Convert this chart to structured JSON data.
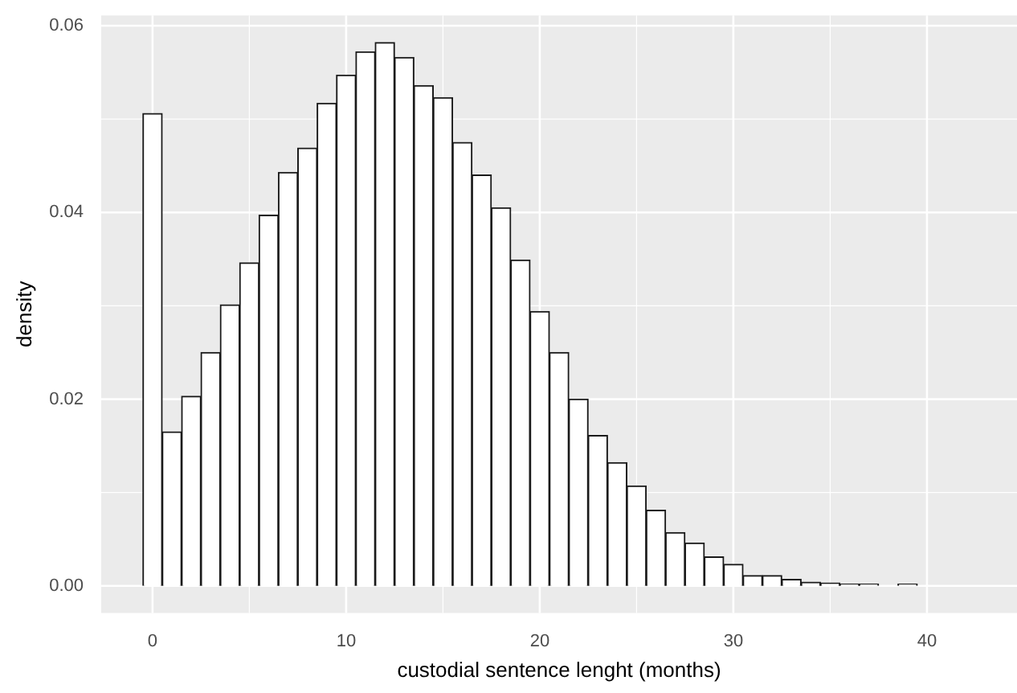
{
  "chart_data": {
    "type": "histogram",
    "xlabel": "custodial sentence lenght (months)",
    "ylabel": "density",
    "bins": [
      -0.5,
      0.5,
      1.5,
      2.5,
      3.5,
      4.5,
      5.5,
      6.5,
      7.5,
      8.5,
      9.5,
      10.5,
      11.5,
      12.5,
      13.5,
      14.5,
      15.5,
      16.5,
      17.5,
      18.5,
      19.5,
      20.5,
      21.5,
      22.5,
      23.5,
      24.5,
      25.5,
      26.5,
      27.5,
      28.5,
      29.5,
      30.5,
      31.5,
      32.5,
      33.5,
      34.5,
      35.5,
      36.5,
      37.5,
      38.5,
      39.5,
      40.5,
      41.5,
      42.5
    ],
    "values": [
      0.0506,
      0.0165,
      0.0203,
      0.025,
      0.0301,
      0.0346,
      0.0397,
      0.0443,
      0.0469,
      0.0517,
      0.0547,
      0.0572,
      0.0582,
      0.0566,
      0.0536,
      0.0523,
      0.0475,
      0.044,
      0.0405,
      0.0349,
      0.0294,
      0.025,
      0.02,
      0.0161,
      0.0132,
      0.0107,
      0.0081,
      0.0057,
      0.0046,
      0.0031,
      0.0023,
      0.0011,
      0.0011,
      0.0007,
      0.0004,
      0.0003,
      0.0002,
      0.0002,
      0,
      0.0002,
      0,
      0,
      0
    ],
    "color": "#ffffff",
    "xlim": [
      -2.65,
      44.65
    ],
    "xticks": [
      0,
      10,
      20,
      30,
      40
    ],
    "ylim": [
      -0.0029,
      0.0611
    ],
    "yticks": [
      {
        "value": 0,
        "label": "0.00"
      },
      {
        "value": 0.02,
        "label": "0.02"
      },
      {
        "value": 0.04,
        "label": "0.04"
      },
      {
        "value": 0.06,
        "label": "0.06"
      }
    ],
    "grid": true
  }
}
